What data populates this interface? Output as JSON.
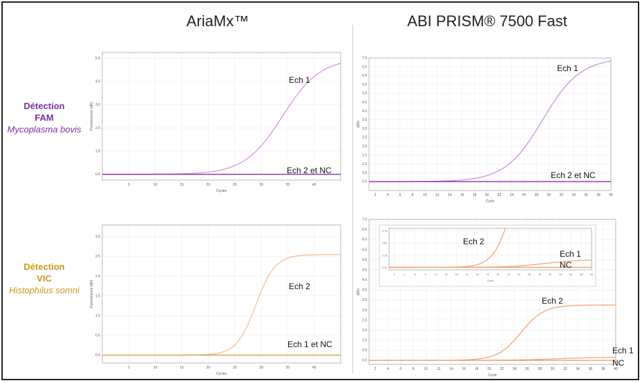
{
  "titles": {
    "left": "AriaMx™",
    "right": "ABI PRISM® 7500 Fast"
  },
  "rows": [
    {
      "line1": "Détection",
      "line2": "FAM",
      "line3": "Mycoplasma bovis",
      "color": "#7b2fa7"
    },
    {
      "line1": "Détection",
      "line2": "VIC",
      "line3": "Histophilus somni",
      "color": "#c89a1a"
    }
  ],
  "chart_data": [
    {
      "id": "aria-fam",
      "type": "line",
      "xlabel": "Cycles",
      "ylabel": "Fluorescence (dR)",
      "xlim": [
        0,
        45
      ],
      "ylim": [
        -0.25,
        5.25
      ],
      "xticks": [
        "5",
        "10",
        "15",
        "20",
        "25",
        "30",
        "35",
        "40"
      ],
      "yticks": [
        "0.0",
        "1.0",
        "2.0",
        "3.0",
        "4.0",
        "5.0"
      ],
      "series": [
        {
          "name": "Ech 1",
          "color": "#d48be6",
          "kind": "sigmoid",
          "mid": 34,
          "k": 0.28,
          "top": 5.0
        },
        {
          "name": "Ech 2 et NC",
          "color": "#8a2ba8",
          "kind": "flat",
          "level": 0.0
        }
      ]
    },
    {
      "id": "abi-fam",
      "type": "line",
      "xlabel": "Cycle",
      "ylabel": "ΔRn",
      "xlim": [
        1,
        40
      ],
      "ylim": [
        -0.5,
        7.0
      ],
      "xticks": [
        "2",
        "4",
        "6",
        "8",
        "10",
        "12",
        "14",
        "16",
        "18",
        "20",
        "22",
        "24",
        "26",
        "28",
        "30",
        "32",
        "34",
        "36",
        "38",
        "40"
      ],
      "yticks": [
        "0.0",
        "0.5",
        "1.0",
        "1.5",
        "2.0",
        "2.5",
        "3.0",
        "3.5",
        "4.0",
        "4.5",
        "5.0",
        "5.5",
        "6.0",
        "6.5",
        "7.0"
      ],
      "series": [
        {
          "name": "Ech 1",
          "color": "#c58ae0",
          "kind": "sigmoid",
          "mid": 29,
          "k": 0.33,
          "top": 7.0
        },
        {
          "name": "Ech 2 et NC",
          "color": "#8a2ba8",
          "kind": "flat",
          "level": 0.0
        }
      ]
    },
    {
      "id": "aria-vic",
      "type": "line",
      "xlabel": "Cycles",
      "ylabel": "Fluorescence (dR)",
      "xlim": [
        0,
        45
      ],
      "ylim": [
        -0.2,
        3.3
      ],
      "xticks": [
        "5",
        "10",
        "15",
        "20",
        "25",
        "30",
        "35",
        "40"
      ],
      "yticks": [
        "0.0",
        "0.5",
        "1.0",
        "1.5",
        "2.0",
        "2.5",
        "3.0"
      ],
      "series": [
        {
          "name": "Ech 2",
          "color": "#f4b98d",
          "kind": "sigmoid",
          "mid": 29,
          "k": 0.55,
          "top": 2.55
        },
        {
          "name": "Ech 1 et NC",
          "color": "#c8a24a",
          "kind": "flat",
          "level": 0.0
        }
      ]
    },
    {
      "id": "abi-vic",
      "type": "line",
      "xlabel": "Cycle",
      "ylabel": "ΔRn",
      "xlim": [
        1,
        40
      ],
      "ylim": [
        -0.2,
        7.0
      ],
      "xticks": [
        "2",
        "4",
        "6",
        "8",
        "10",
        "12",
        "14",
        "16",
        "18",
        "20",
        "22",
        "24",
        "26",
        "28",
        "30",
        "32",
        "34",
        "36",
        "38",
        "40"
      ],
      "yticks": [
        "0.0",
        "0.5",
        "1.0",
        "1.5",
        "2.0",
        "2.5",
        "3.0",
        "3.5",
        "4.0",
        "4.5",
        "5.0",
        "5.5",
        "6.0",
        "6.5",
        "7.0"
      ],
      "series": [
        {
          "name": "Ech 2",
          "color": "#f0a06a",
          "kind": "sigmoid",
          "mid": 25,
          "k": 0.55,
          "top": 2.75
        },
        {
          "name": "Ech 1",
          "color": "#f0a06a",
          "kind": "sigmoid",
          "mid": 31,
          "k": 0.3,
          "top": 0.16
        },
        {
          "name": "NC",
          "color": "#f0a06a",
          "kind": "flat",
          "level": 0.0
        }
      ]
    },
    {
      "id": "abi-vic-inset",
      "type": "line",
      "xlabel": "Cycle",
      "ylabel": "",
      "xlim": [
        1,
        40
      ],
      "ylim": [
        -0.05,
        0.8
      ],
      "xticks": [
        "2",
        "4",
        "6",
        "8",
        "10",
        "12",
        "14",
        "16",
        "18",
        "20",
        "22",
        "24",
        "26",
        "28",
        "30",
        "32",
        "34",
        "36",
        "38",
        "40"
      ],
      "yticks": [
        "0.00",
        "0.25",
        "0.50",
        "0.75"
      ],
      "series": [
        {
          "name": "Ech 2",
          "color": "#f0a06a",
          "kind": "sigmoid",
          "mid": 25,
          "k": 0.55,
          "top": 2.75
        },
        {
          "name": "Ech 1",
          "color": "#f0a06a",
          "kind": "sigmoid",
          "mid": 31,
          "k": 0.3,
          "top": 0.16
        },
        {
          "name": "NC",
          "color": "#f0a06a",
          "kind": "flat",
          "level": 0.0
        }
      ]
    }
  ],
  "labels": {
    "aria_fam": {
      "ech1": "Ech 1",
      "ech2nc": "Ech 2 et NC"
    },
    "abi_fam": {
      "ech1": "Ech 1",
      "ech2nc": "Ech 2 et NC"
    },
    "aria_vic": {
      "ech2": "Ech 2",
      "ech1nc": "Ech 1 et NC"
    },
    "abi_vic": {
      "ech2": "Ech 2",
      "ech1": "Ech 1",
      "nc": "NC"
    },
    "abi_vic_inset": {
      "ech2": "Ech 2",
      "ech1": "Ech 1",
      "nc": "NC"
    }
  }
}
